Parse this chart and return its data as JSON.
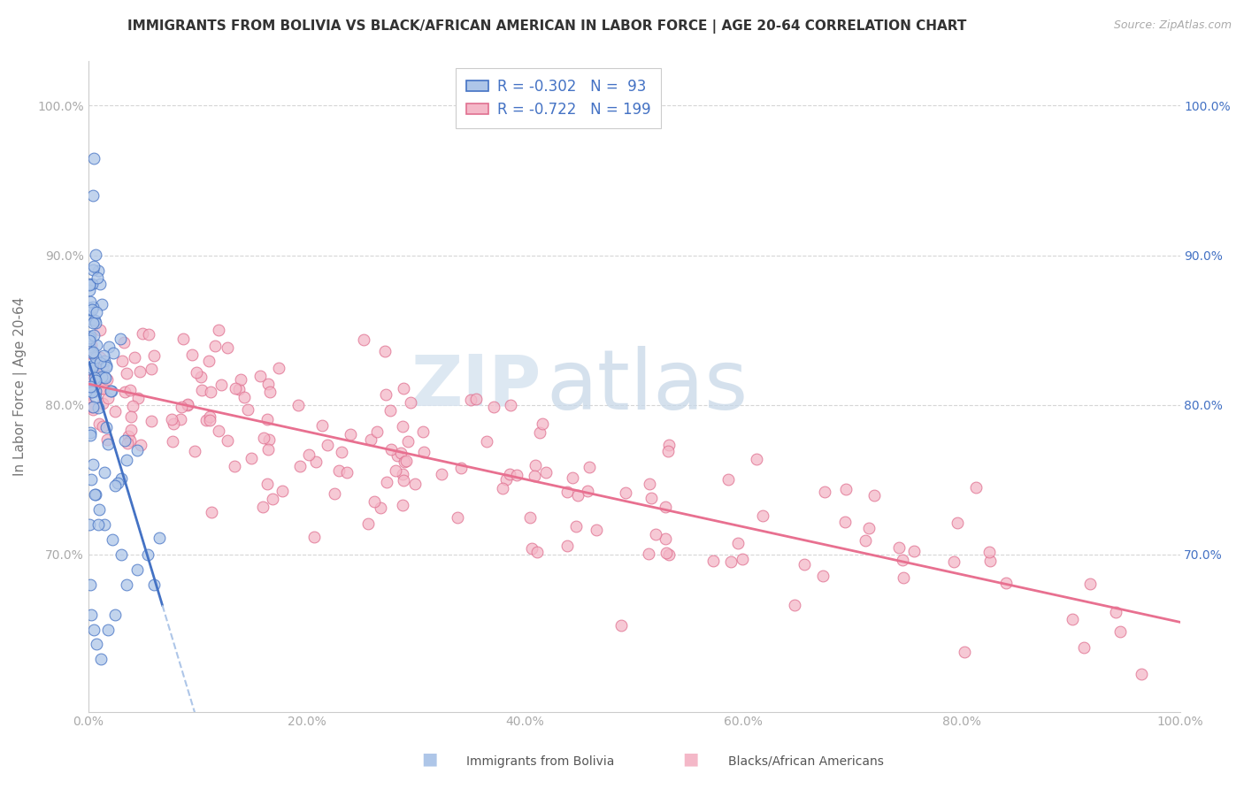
{
  "title": "IMMIGRANTS FROM BOLIVIA VS BLACK/AFRICAN AMERICAN IN LABOR FORCE | AGE 20-64 CORRELATION CHART",
  "source": "Source: ZipAtlas.com",
  "ylabel": "In Labor Force | Age 20-64",
  "watermark_zip": "ZIP",
  "watermark_atlas": "atlas",
  "blue_R": -0.302,
  "blue_N": 93,
  "pink_R": -0.722,
  "pink_N": 199,
  "blue_label": "Immigrants from Bolivia",
  "pink_label": "Blacks/African Americans",
  "xlim": [
    0.0,
    1.0
  ],
  "ylim": [
    0.595,
    1.03
  ],
  "yticks": [
    0.7,
    0.8,
    0.9,
    1.0
  ],
  "ytick_labels": [
    "70.0%",
    "80.0%",
    "90.0%",
    "100.0%"
  ],
  "xticks": [
    0.0,
    0.2,
    0.4,
    0.6,
    0.8,
    1.0
  ],
  "xtick_labels": [
    "0.0%",
    "20.0%",
    "40.0%",
    "60.0%",
    "80.0%",
    "100.0%"
  ],
  "right_ytick_labels": [
    "70.0%",
    "80.0%",
    "90.0%",
    "100.0%"
  ],
  "axis_color": "#4472C4",
  "grid_color": "#cccccc",
  "blue_scatter_color": "#aec6e8",
  "blue_edge_color": "#4472C4",
  "pink_scatter_color": "#f4b8c8",
  "pink_edge_color": "#e07090",
  "blue_line_color": "#4472C4",
  "blue_dashed_color": "#aec6e8",
  "pink_line_color": "#e87090",
  "title_fontsize": 11,
  "axis_label_fontsize": 11,
  "tick_fontsize": 10,
  "legend_fontsize": 12,
  "legend_text_color": "#4472C4"
}
